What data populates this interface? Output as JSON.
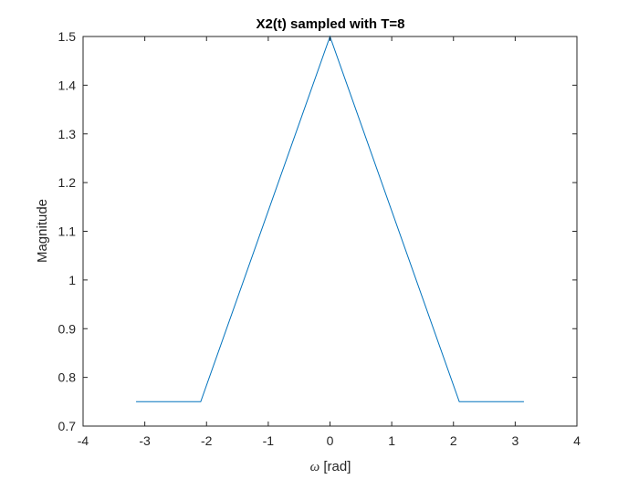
{
  "chart_data": {
    "type": "line",
    "title": "X2(t) sampled with T=8",
    "xlabel_symbol": "ω",
    "xlabel_unit": "[rad]",
    "ylabel": "Magnitude",
    "xlim": [
      -4,
      4
    ],
    "ylim": [
      0.7,
      1.5
    ],
    "xticks": [
      -4,
      -3,
      -2,
      -1,
      0,
      1,
      2,
      3,
      4
    ],
    "yticks": [
      0.7,
      0.8,
      0.9,
      1.0,
      1.1,
      1.2,
      1.3,
      1.4,
      1.5
    ],
    "xtick_labels": [
      "-4",
      "-3",
      "-2",
      "-1",
      "0",
      "1",
      "2",
      "3",
      "4"
    ],
    "ytick_labels": [
      "0.7",
      "0.8",
      "0.9",
      "1",
      "1.1",
      "1.2",
      "1.3",
      "1.4",
      "1.5"
    ],
    "grid": false,
    "series": [
      {
        "color": "#0072BD",
        "x": [
          -3.1416,
          -2.0944,
          0,
          2.0944,
          3.1416
        ],
        "y": [
          0.75,
          0.75,
          1.5,
          0.75,
          0.75
        ]
      }
    ]
  }
}
